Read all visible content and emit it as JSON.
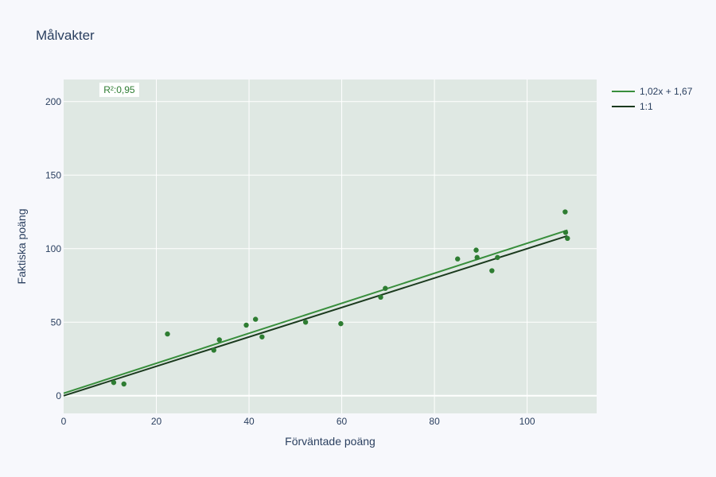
{
  "chart_data": {
    "type": "scatter",
    "title": "Målvakter",
    "xlabel": "Förväntade poäng",
    "ylabel": "Faktiska poäng",
    "xlim": [
      0,
      115
    ],
    "ylim": [
      -12,
      215
    ],
    "xticks": [
      0,
      20,
      40,
      60,
      80,
      100
    ],
    "yticks": [
      0,
      50,
      100,
      150,
      200
    ],
    "grid": true,
    "legend_position": "right",
    "colors": {
      "plot_bg": "#dfe8e3",
      "page_bg": "#f7f8fc",
      "points": "#2e7d32",
      "fit_line": "#388e3c",
      "identity_line": "#1b3a1e",
      "grid": "#ffffff",
      "text": "#2a3f5f"
    },
    "points": [
      {
        "x": 10.8,
        "y": 9
      },
      {
        "x": 13.0,
        "y": 8
      },
      {
        "x": 22.4,
        "y": 42
      },
      {
        "x": 32.4,
        "y": 31
      },
      {
        "x": 33.6,
        "y": 38
      },
      {
        "x": 39.4,
        "y": 48
      },
      {
        "x": 41.4,
        "y": 52
      },
      {
        "x": 42.8,
        "y": 40
      },
      {
        "x": 52.2,
        "y": 50
      },
      {
        "x": 59.8,
        "y": 49
      },
      {
        "x": 68.4,
        "y": 67
      },
      {
        "x": 69.4,
        "y": 73
      },
      {
        "x": 85.0,
        "y": 93
      },
      {
        "x": 89.0,
        "y": 99
      },
      {
        "x": 89.2,
        "y": 94
      },
      {
        "x": 92.4,
        "y": 85
      },
      {
        "x": 93.6,
        "y": 94
      },
      {
        "x": 108.2,
        "y": 125
      },
      {
        "x": 108.3,
        "y": 111
      },
      {
        "x": 108.7,
        "y": 107
      }
    ],
    "lines": [
      {
        "name": "1,02x + 1,67",
        "slope": 1.02,
        "intercept": 1.67,
        "x_range": [
          0,
          108.7
        ],
        "color": "#388e3c"
      },
      {
        "name": "1:1",
        "slope": 1.0,
        "intercept": 0,
        "x_range": [
          0,
          108.7
        ],
        "color": "#1b3a1e"
      }
    ],
    "annotation": {
      "text": "R²:0,95",
      "x": 12,
      "y": 208
    }
  }
}
